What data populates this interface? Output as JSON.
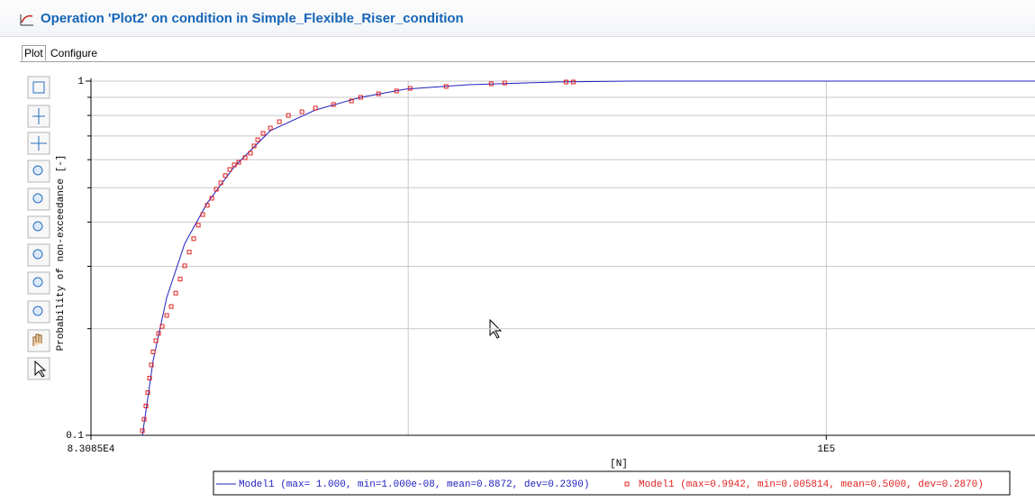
{
  "header": {
    "title": "Operation 'Plot2' on condition in Simple_Flexible_Riser_condition"
  },
  "tabs": [
    "Plot",
    "Configure"
  ],
  "chart_data": {
    "type": "scatter",
    "y_label": "Probability of non-exceedance [-]",
    "x_label": "[N]",
    "xscale": "log",
    "yscale": "log",
    "grid": true,
    "xlim": [
      83085,
      105400
    ],
    "ylim": [
      0.1,
      1
    ],
    "xticks": [
      {
        "value": 83085,
        "label": "8.3085E4"
      },
      {
        "value": 100000,
        "label": "1E5"
      }
    ],
    "yticks": [
      0.1,
      1
    ],
    "x_gridlines": [
      90000
    ],
    "y_gridlines": [
      0.2,
      0.3,
      0.4,
      0.5,
      0.6,
      0.7,
      0.8,
      0.9
    ],
    "series": [
      {
        "name": "Model1 (max= 1.000, min=1.000e-08, mean=0.8872, dev=0.2390)",
        "color": "#2020c0",
        "style": "line",
        "x": [
          84168,
          84398,
          84686,
          85071,
          85556,
          86141,
          86927,
          87920,
          88928,
          89944,
          91382,
          93478,
          95190,
          105400
        ],
        "values": [
          0.1,
          0.163,
          0.245,
          0.348,
          0.453,
          0.573,
          0.724,
          0.829,
          0.9,
          0.949,
          0.977,
          0.995,
          1,
          1
        ]
      },
      {
        "name": "Model1 (max=0.9942, min=0.005814, mean=0.5000, dev=0.2870)",
        "color": "#e02020",
        "style": "markers",
        "x": [
          84168,
          84206,
          84244,
          84282,
          84321,
          84359,
          84398,
          84455,
          84513,
          84589,
          84686,
          84782,
          84878,
          84974,
          85071,
          85168,
          85264,
          85362,
          85459,
          85556,
          85653,
          85751,
          85848,
          85946,
          86043,
          86141,
          86238,
          86375,
          86493,
          86572,
          86650,
          86769,
          86927,
          87124,
          87323,
          87621,
          87920,
          88320,
          88722,
          88928,
          89329,
          89736,
          90043,
          90864,
          91902,
          92216,
          93651,
          93822
        ],
        "values": [
          0.103,
          0.111,
          0.121,
          0.132,
          0.145,
          0.158,
          0.172,
          0.185,
          0.194,
          0.203,
          0.218,
          0.231,
          0.252,
          0.276,
          0.301,
          0.329,
          0.359,
          0.392,
          0.42,
          0.446,
          0.467,
          0.495,
          0.516,
          0.541,
          0.563,
          0.58,
          0.59,
          0.608,
          0.626,
          0.656,
          0.683,
          0.712,
          0.737,
          0.768,
          0.8,
          0.819,
          0.839,
          0.859,
          0.879,
          0.9,
          0.921,
          0.938,
          0.954,
          0.966,
          0.983,
          0.988,
          0.994,
          0.9942
        ]
      }
    ]
  }
}
